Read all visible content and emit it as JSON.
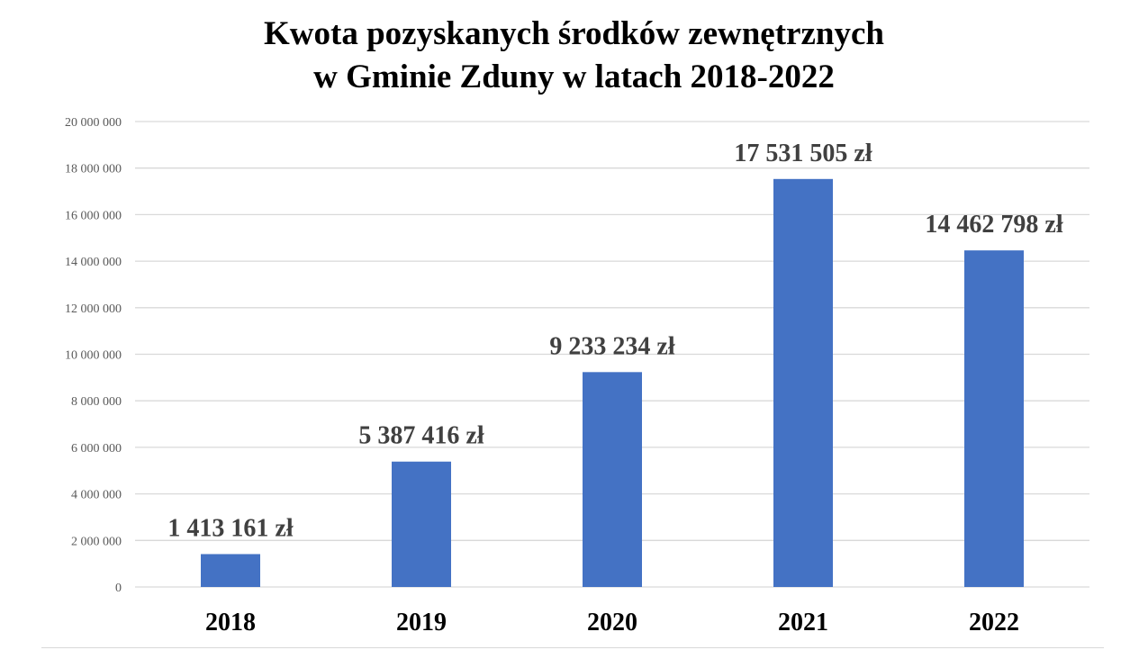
{
  "chart_data": {
    "type": "bar",
    "title_lines": [
      "Kwota pozyskanych środków zewnętrznych",
      "w Gminie Zduny w latach 2018-2022"
    ],
    "categories": [
      "2018",
      "2019",
      "2020",
      "2021",
      "2022"
    ],
    "values": [
      1413161,
      5387416,
      9233234,
      17531505,
      14462798
    ],
    "data_labels": [
      "1 413 161 zł",
      "5 387 416 zł",
      "9 233 234 zł",
      "17 531 505 zł",
      "14 462 798 zł"
    ],
    "ylim": [
      0,
      20000000
    ],
    "yticks": [
      0,
      2000000,
      4000000,
      6000000,
      8000000,
      10000000,
      12000000,
      14000000,
      16000000,
      18000000,
      20000000
    ],
    "ytick_labels": [
      "0",
      "2 000 000",
      "4 000 000",
      "6 000 000",
      "8 000 000",
      "10 000 000",
      "12 000 000",
      "14 000 000",
      "16 000 000",
      "18 000 000",
      "20 000 000"
    ],
    "xlabel": "",
    "ylabel": "",
    "grid": true,
    "legend": "none",
    "bar_color": "#4472c4",
    "grid_color": "#d9d9d9"
  }
}
